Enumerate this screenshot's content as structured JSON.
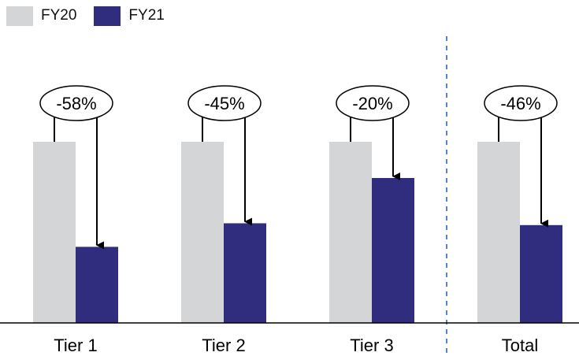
{
  "legend": {
    "fy20": {
      "label": "FY20"
    },
    "fy21": {
      "label": "FY21"
    }
  },
  "colors": {
    "fy20": "#d4d5d7",
    "fy21": "#312d7e",
    "divider": "#5b84c4",
    "axis": "#000000",
    "arrow": "#000000"
  },
  "chart_data": {
    "type": "bar",
    "categories": [
      "Tier 1",
      "Tier 2",
      "Tier 3",
      "Total"
    ],
    "series": [
      {
        "name": "FY20",
        "values": [
          100,
          100,
          100,
          100
        ]
      },
      {
        "name": "FY21",
        "values": [
          42,
          55,
          80,
          54
        ]
      }
    ],
    "annotations": [
      "-58%",
      "-45%",
      "-20%",
      "-46%"
    ],
    "ylim": [
      0,
      130
    ],
    "grid": false,
    "legend_position": "top-left",
    "divider": {
      "between": [
        "Tier 3",
        "Total"
      ],
      "style": "dashed"
    }
  }
}
